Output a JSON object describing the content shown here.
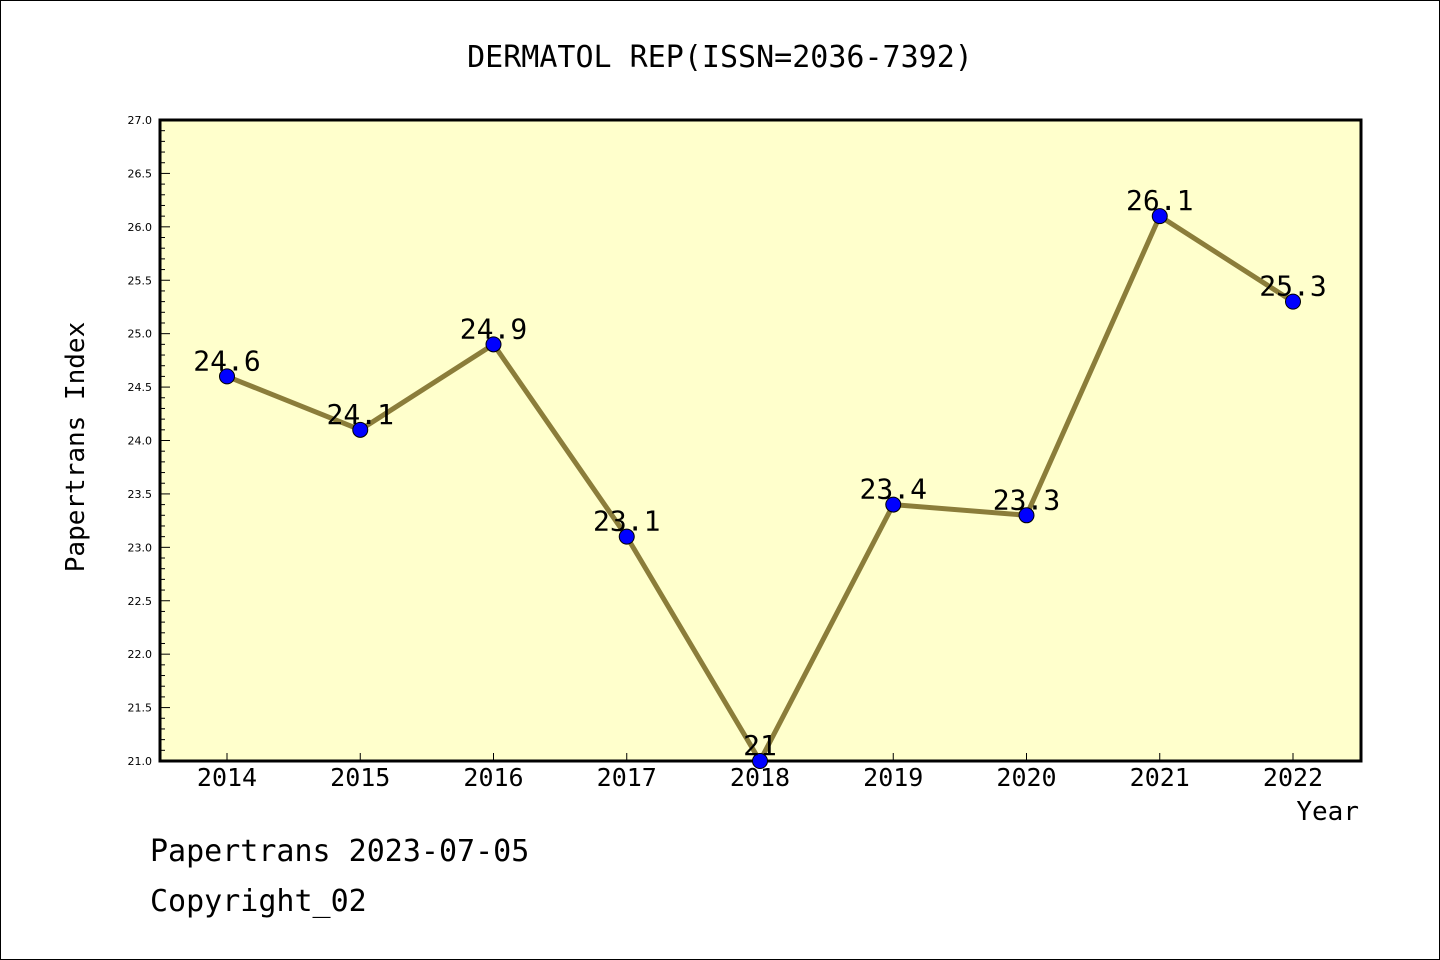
{
  "chart_data": {
    "type": "line",
    "title": "DERMATOL REP(ISSN=2036-7392)",
    "xlabel": "Year",
    "ylabel": "Papertrans Index",
    "categories": [
      "2014",
      "2015",
      "2016",
      "2017",
      "2018",
      "2019",
      "2020",
      "2021",
      "2022"
    ],
    "series": [
      {
        "values": [
          24.6,
          24.1,
          24.9,
          23.1,
          21.0,
          23.4,
          23.3,
          26.1,
          25.3
        ],
        "data_labels": [
          "24.6",
          "24.1",
          "24.9",
          "23.1",
          "21",
          "23.4",
          "23.3",
          "26.1",
          "25.3"
        ]
      }
    ],
    "ylim": [
      21.0,
      27.0
    ],
    "yticks": [
      "21.0",
      "21.5",
      "22.0",
      "22.5",
      "23.0",
      "23.5",
      "24.0",
      "24.5",
      "25.0",
      "25.5",
      "26.0",
      "26.5",
      "27.0"
    ],
    "grid": false,
    "legend": "none",
    "colors": {
      "plot_background": "#ffffcc",
      "line": "#8b7d3a",
      "marker": "#0000ff"
    }
  },
  "footer": {
    "line1": "Papertrans 2023-07-05",
    "line2": "Copyright_02"
  }
}
